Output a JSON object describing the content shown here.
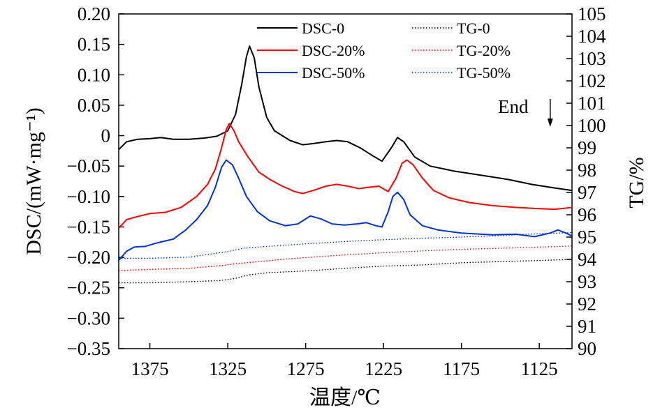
{
  "chart_data": {
    "type": "line",
    "x": {
      "label": "温度/℃",
      "range": [
        1395,
        1104
      ],
      "reversed": true,
      "ticks": [
        1375,
        1325,
        1275,
        1225,
        1175,
        1125
      ],
      "tick_labels": [
        "1375",
        "1325",
        "1275",
        "1225",
        "1175",
        "1125"
      ]
    },
    "y_left": {
      "label": "DSC/(mW·mg⁻¹)",
      "range": [
        -0.35,
        0.2
      ],
      "ticks": [
        -0.35,
        -0.3,
        -0.25,
        -0.2,
        -0.15,
        -0.1,
        -0.05,
        0,
        0.05,
        0.1,
        0.15,
        0.2
      ],
      "tick_labels": [
        "−0.35",
        "−0.30",
        "−0.25",
        "−0.20",
        "−0.15",
        "−0.10",
        "−0.05",
        "0",
        "0.05",
        "0.10",
        "0.15",
        "0.20"
      ]
    },
    "y_right": {
      "label": "TG/%",
      "range": [
        90,
        105
      ],
      "ticks": [
        90,
        91,
        92,
        93,
        94,
        95,
        96,
        97,
        98,
        99,
        100,
        101,
        102,
        103,
        104,
        105
      ],
      "tick_labels": [
        "90",
        "91",
        "92",
        "93",
        "94",
        "95",
        "96",
        "97",
        "98",
        "99",
        "100",
        "101",
        "102",
        "103",
        "104",
        "105"
      ]
    },
    "annotation": {
      "text": "End",
      "x": 1118
    },
    "series": [
      {
        "name": "DSC-0",
        "axis": "left",
        "color": "#000000",
        "style": "solid",
        "points": [
          [
            1395,
            -0.023
          ],
          [
            1390,
            -0.01
          ],
          [
            1383,
            -0.006
          ],
          [
            1375,
            -0.005
          ],
          [
            1368,
            -0.003
          ],
          [
            1360,
            -0.006
          ],
          [
            1350,
            -0.006
          ],
          [
            1340,
            -0.004
          ],
          [
            1332,
            -0.001
          ],
          [
            1325,
            0.008
          ],
          [
            1320,
            0.035
          ],
          [
            1316,
            0.085
          ],
          [
            1313,
            0.13
          ],
          [
            1311,
            0.147
          ],
          [
            1308,
            0.128
          ],
          [
            1305,
            0.08
          ],
          [
            1300,
            0.03
          ],
          [
            1295,
            0.008
          ],
          [
            1285,
            -0.008
          ],
          [
            1277,
            -0.015
          ],
          [
            1270,
            -0.013
          ],
          [
            1262,
            -0.01
          ],
          [
            1255,
            -0.008
          ],
          [
            1248,
            -0.01
          ],
          [
            1240,
            -0.02
          ],
          [
            1232,
            -0.033
          ],
          [
            1226,
            -0.042
          ],
          [
            1220,
            -0.02
          ],
          [
            1216,
            -0.003
          ],
          [
            1212,
            -0.01
          ],
          [
            1205,
            -0.035
          ],
          [
            1195,
            -0.05
          ],
          [
            1180,
            -0.058
          ],
          [
            1160,
            -0.066
          ],
          [
            1145,
            -0.072
          ],
          [
            1130,
            -0.08
          ],
          [
            1115,
            -0.086
          ],
          [
            1104,
            -0.09
          ]
        ]
      },
      {
        "name": "DSC-20%",
        "axis": "left",
        "color": "#ff0000",
        "style": "solid",
        "points": [
          [
            1395,
            -0.152
          ],
          [
            1390,
            -0.138
          ],
          [
            1383,
            -0.133
          ],
          [
            1375,
            -0.128
          ],
          [
            1365,
            -0.126
          ],
          [
            1355,
            -0.118
          ],
          [
            1345,
            -0.1
          ],
          [
            1338,
            -0.08
          ],
          [
            1333,
            -0.055
          ],
          [
            1329,
            -0.02
          ],
          [
            1326,
            0.01
          ],
          [
            1324,
            0.02
          ],
          [
            1321,
            0.008
          ],
          [
            1318,
            -0.01
          ],
          [
            1312,
            -0.035
          ],
          [
            1305,
            -0.06
          ],
          [
            1298,
            -0.072
          ],
          [
            1290,
            -0.083
          ],
          [
            1282,
            -0.092
          ],
          [
            1277,
            -0.095
          ],
          [
            1270,
            -0.09
          ],
          [
            1262,
            -0.083
          ],
          [
            1255,
            -0.08
          ],
          [
            1248,
            -0.083
          ],
          [
            1241,
            -0.087
          ],
          [
            1235,
            -0.085
          ],
          [
            1228,
            -0.083
          ],
          [
            1222,
            -0.092
          ],
          [
            1217,
            -0.07
          ],
          [
            1213,
            -0.045
          ],
          [
            1210,
            -0.04
          ],
          [
            1206,
            -0.048
          ],
          [
            1200,
            -0.07
          ],
          [
            1193,
            -0.09
          ],
          [
            1183,
            -0.102
          ],
          [
            1170,
            -0.11
          ],
          [
            1155,
            -0.115
          ],
          [
            1140,
            -0.118
          ],
          [
            1125,
            -0.12
          ],
          [
            1115,
            -0.121
          ],
          [
            1104,
            -0.118
          ]
        ]
      },
      {
        "name": "DSC-50%",
        "axis": "left",
        "color": "#0033dd",
        "style": "solid",
        "points": [
          [
            1395,
            -0.205
          ],
          [
            1390,
            -0.19
          ],
          [
            1385,
            -0.183
          ],
          [
            1378,
            -0.182
          ],
          [
            1370,
            -0.176
          ],
          [
            1360,
            -0.17
          ],
          [
            1352,
            -0.155
          ],
          [
            1345,
            -0.138
          ],
          [
            1338,
            -0.115
          ],
          [
            1333,
            -0.085
          ],
          [
            1329,
            -0.052
          ],
          [
            1326,
            -0.04
          ],
          [
            1322,
            -0.048
          ],
          [
            1318,
            -0.07
          ],
          [
            1313,
            -0.1
          ],
          [
            1306,
            -0.125
          ],
          [
            1298,
            -0.14
          ],
          [
            1288,
            -0.148
          ],
          [
            1280,
            -0.145
          ],
          [
            1272,
            -0.132
          ],
          [
            1265,
            -0.137
          ],
          [
            1258,
            -0.145
          ],
          [
            1250,
            -0.147
          ],
          [
            1242,
            -0.145
          ],
          [
            1236,
            -0.143
          ],
          [
            1230,
            -0.148
          ],
          [
            1226,
            -0.15
          ],
          [
            1222,
            -0.125
          ],
          [
            1219,
            -0.1
          ],
          [
            1216,
            -0.093
          ],
          [
            1212,
            -0.105
          ],
          [
            1208,
            -0.13
          ],
          [
            1200,
            -0.148
          ],
          [
            1190,
            -0.155
          ],
          [
            1175,
            -0.16
          ],
          [
            1155,
            -0.163
          ],
          [
            1140,
            -0.162
          ],
          [
            1128,
            -0.166
          ],
          [
            1118,
            -0.16
          ],
          [
            1113,
            -0.155
          ],
          [
            1108,
            -0.16
          ],
          [
            1104,
            -0.165
          ]
        ]
      },
      {
        "name": "TG-0",
        "axis": "right",
        "color": "#000000",
        "style": "dotted",
        "points": [
          [
            1395,
            92.95
          ],
          [
            1375,
            92.95
          ],
          [
            1350,
            93.0
          ],
          [
            1330,
            93.05
          ],
          [
            1320,
            93.15
          ],
          [
            1312,
            93.3
          ],
          [
            1300,
            93.4
          ],
          [
            1285,
            93.45
          ],
          [
            1270,
            93.5
          ],
          [
            1250,
            93.6
          ],
          [
            1225,
            93.7
          ],
          [
            1200,
            93.75
          ],
          [
            1175,
            93.85
          ],
          [
            1150,
            93.9
          ],
          [
            1125,
            93.95
          ],
          [
            1104,
            94.0
          ]
        ]
      },
      {
        "name": "TG-20%",
        "axis": "right",
        "color": "#ff0000",
        "style": "dotted",
        "points": [
          [
            1395,
            93.5
          ],
          [
            1375,
            93.55
          ],
          [
            1350,
            93.6
          ],
          [
            1330,
            93.72
          ],
          [
            1318,
            93.82
          ],
          [
            1305,
            93.9
          ],
          [
            1290,
            94.0
          ],
          [
            1275,
            94.08
          ],
          [
            1250,
            94.2
          ],
          [
            1225,
            94.3
          ],
          [
            1200,
            94.38
          ],
          [
            1175,
            94.45
          ],
          [
            1150,
            94.5
          ],
          [
            1125,
            94.55
          ],
          [
            1104,
            94.6
          ]
        ]
      },
      {
        "name": "TG-50%",
        "axis": "right",
        "color": "#0033dd",
        "style": "dotted",
        "points": [
          [
            1395,
            94.05
          ],
          [
            1375,
            94.05
          ],
          [
            1350,
            94.1
          ],
          [
            1335,
            94.25
          ],
          [
            1325,
            94.35
          ],
          [
            1315,
            94.5
          ],
          [
            1300,
            94.58
          ],
          [
            1285,
            94.65
          ],
          [
            1270,
            94.72
          ],
          [
            1250,
            94.8
          ],
          [
            1225,
            94.88
          ],
          [
            1200,
            94.95
          ],
          [
            1175,
            95.0
          ],
          [
            1150,
            95.07
          ],
          [
            1125,
            95.15
          ],
          [
            1104,
            95.2
          ]
        ]
      }
    ],
    "legend": {
      "placement": "top",
      "entries": [
        {
          "label": "DSC-0",
          "series": "DSC-0"
        },
        {
          "label": "TG-0",
          "series": "TG-0"
        },
        {
          "label": "DSC-20%",
          "series": "DSC-20%"
        },
        {
          "label": "TG-20%",
          "series": "TG-20%"
        },
        {
          "label": "DSC-50%",
          "series": "DSC-50%"
        },
        {
          "label": "TG-50%",
          "series": "TG-50%"
        }
      ]
    }
  }
}
